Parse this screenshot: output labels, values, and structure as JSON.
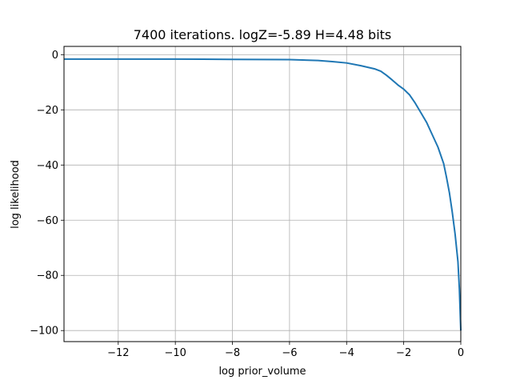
{
  "chart_data": {
    "type": "line",
    "title": "7400 iterations. logZ=-5.89 H=4.48 bits",
    "xlabel": "log prior_volume",
    "ylabel": "log likelihood",
    "xlim": [
      -13.9,
      0
    ],
    "ylim": [
      -104,
      3
    ],
    "xticks": [
      -12,
      -10,
      -8,
      -6,
      -4,
      -2,
      0
    ],
    "xtick_labels": [
      "−12",
      "−10",
      "−8",
      "−6",
      "−4",
      "−2",
      "0"
    ],
    "yticks": [
      0,
      -20,
      -40,
      -60,
      -80,
      -100
    ],
    "ytick_labels": [
      "0",
      "−20",
      "−40",
      "−60",
      "−80",
      "−100"
    ],
    "grid": true,
    "series": [
      {
        "color": "#1f77b4",
        "x": [
          -13.9,
          -12,
          -10,
          -8,
          -6,
          -5,
          -4.5,
          -4,
          -3.5,
          -3,
          -2.8,
          -2.6,
          -2.4,
          -2.2,
          -2.0,
          -1.8,
          -1.6,
          -1.4,
          -1.2,
          -1.0,
          -0.8,
          -0.6,
          -0.5,
          -0.4,
          -0.3,
          -0.2,
          -0.1,
          -0.05,
          0
        ],
        "y": [
          -1.6,
          -1.6,
          -1.6,
          -1.7,
          -1.8,
          -2.1,
          -2.5,
          -3.0,
          -4.0,
          -5.2,
          -6.0,
          -7.5,
          -9.2,
          -11.0,
          -12.5,
          -14.5,
          -17.5,
          -21.0,
          -24.5,
          -29.0,
          -33.5,
          -39.5,
          -44.5,
          -50.0,
          -57.0,
          -65.0,
          -75.0,
          -85.0,
          -100.0
        ]
      }
    ]
  }
}
